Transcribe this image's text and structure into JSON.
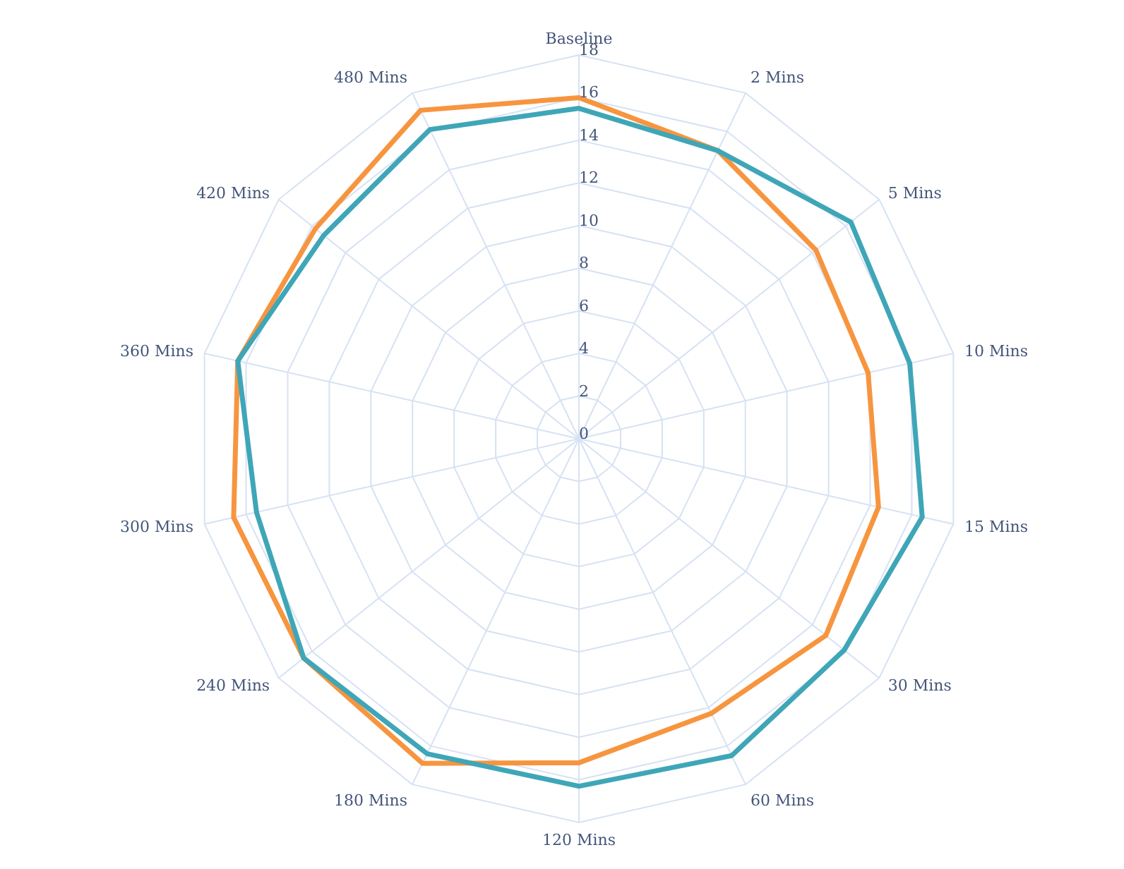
{
  "chart_data": {
    "type": "radar",
    "categories": [
      "Baseline",
      "2 Mins",
      "5 Mins",
      "10 Mins",
      "15 Mins",
      "30 Mins",
      "60 Mins",
      "120 Mins",
      "180 Mins",
      "240 Mins",
      "300 Mins",
      "360 Mins",
      "420 Mins",
      "480 Mins"
    ],
    "series": [
      {
        "color": "#f7953f",
        "values": [
          16.0,
          15.0,
          14.2,
          13.9,
          14.4,
          14.8,
          14.3,
          15.2,
          16.9,
          16.5,
          16.6,
          16.4,
          15.8,
          17.1
        ]
      },
      {
        "color": "#3fa6b8",
        "values": [
          15.5,
          15.0,
          16.3,
          15.9,
          16.5,
          15.9,
          16.5,
          16.3,
          16.4,
          16.5,
          15.5,
          16.4,
          15.3,
          16.1
        ]
      }
    ],
    "ylim": [
      0,
      18
    ],
    "yticks": [
      0,
      2,
      4,
      6,
      8,
      10,
      12,
      14,
      16,
      18
    ],
    "grid": true,
    "legend": false,
    "line_style": "solid",
    "marker": "none"
  }
}
